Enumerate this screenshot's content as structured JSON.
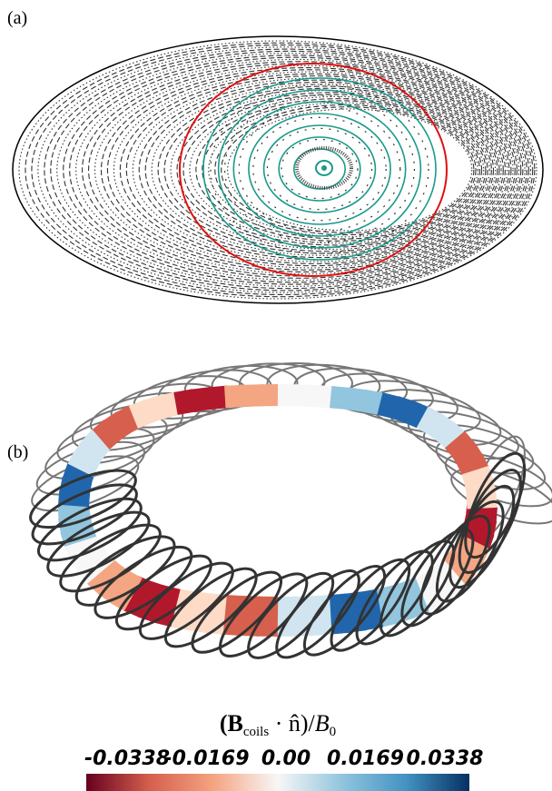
{
  "panels": [
    {
      "label": "(a)"
    },
    {
      "label": "(b)"
    }
  ],
  "colorbar": {
    "title_parts": [
      "(B",
      "coils",
      " · n̂)/",
      "B",
      "0"
    ],
    "lim": [
      -0.0338,
      0.0338
    ],
    "ticks": [
      -0.0338,
      -0.0169,
      {
        "value": 0,
        "label": "0.00"
      },
      0.0169,
      0.0338
    ],
    "colors": [
      "#67001f",
      "#d6604d",
      "#f4a582",
      "#f7f7f7",
      "#92c5de",
      "#4393c3",
      "#053061"
    ]
  }
}
